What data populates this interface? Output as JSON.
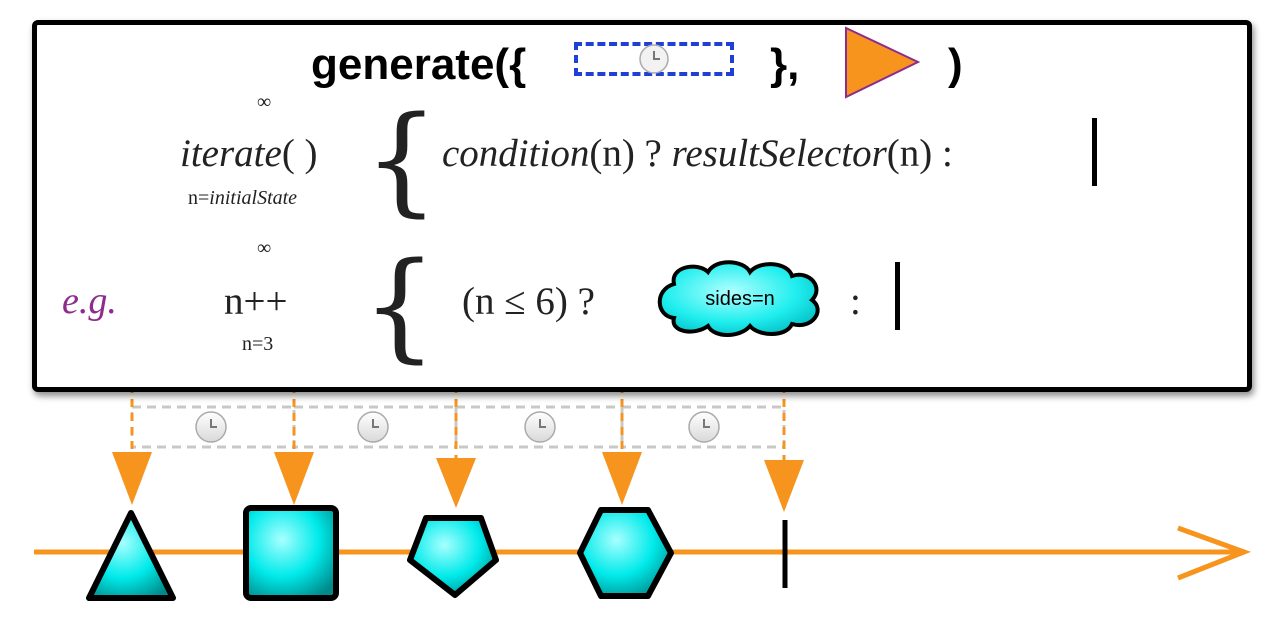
{
  "operator": {
    "title_prefix": "generate({",
    "title_middle": "},",
    "title_suffix": ")",
    "infinity_symbol": "∞",
    "iterate_label": "iterate",
    "iterate_parens": "( )",
    "iterate_subscript_prefix": "n=",
    "iterate_subscript_var": "initialState",
    "condition_label": "condition",
    "condition_arg": "(n) ?",
    "result_selector_label": "resultSelector",
    "result_selector_arg": "(n) :"
  },
  "example": {
    "eg_label": "e.g.",
    "increment": "n++",
    "start": "n=3",
    "condition": "(n ≤ 6) ?",
    "cloud_text": "sides=n",
    "colon": ":"
  },
  "colors": {
    "timeline": "#f7941d",
    "shape_fill": "#00f0f0",
    "timer_border": "#1f3fd6",
    "eg_color": "#8e2c8e",
    "arrow_outline": "#8e2c8e"
  },
  "emissions": [
    {
      "shape": "triangle-icon"
    },
    {
      "shape": "square-icon"
    },
    {
      "shape": "pentagon-icon"
    },
    {
      "shape": "hexagon-icon"
    }
  ],
  "completion": "completion-bar"
}
